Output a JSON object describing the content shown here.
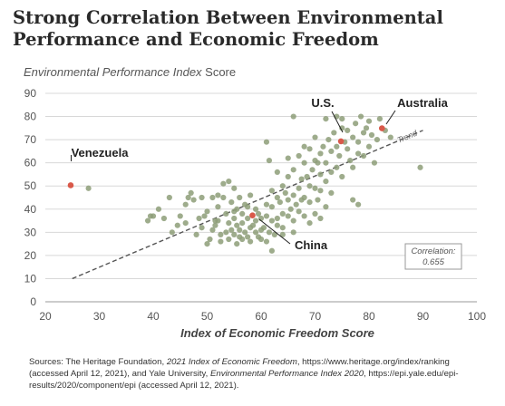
{
  "title": "Strong Correlation Between Environmental Performance and Economic Freedom",
  "y_label_italic": "Environmental Performance Index",
  "y_label_rest": " Score",
  "sources": {
    "prefix": "Sources: The Heritage Foundation, ",
    "italic1": "2021 Index of Economic Freedom",
    "mid": ", https://www.heritage.org/index/ranking (accessed April 12, 2021), and Yale University, ",
    "italic2": "Environmental Performance Index 2020",
    "suffix": ", https://epi.yale.edu/epi-results/2020/component/epi (accessed April 12, 2021)."
  },
  "colors": {
    "points": "#8d9e78",
    "highlight": "#d9594a",
    "trend": "#555555",
    "gridline": "#d8d8d8"
  },
  "chart_data": {
    "type": "scatter",
    "xlabel": "Index of Economic Freedom Score",
    "ylabel": "Environmental Performance Index Score",
    "xlim": [
      20,
      100
    ],
    "ylim": [
      0,
      90
    ],
    "x_ticks": [
      20,
      30,
      40,
      50,
      60,
      70,
      80,
      90,
      100
    ],
    "y_ticks": [
      0,
      10,
      20,
      30,
      40,
      50,
      60,
      70,
      80,
      90
    ],
    "grid": "horizontal",
    "trend": {
      "label": "Trend",
      "from": [
        25,
        10
      ],
      "to": [
        90,
        74
      ]
    },
    "correlation": {
      "label": "Correlation:",
      "value": "0.655"
    },
    "highlights": [
      {
        "label": "Venezuela",
        "x": 24.7,
        "y": 50.3
      },
      {
        "label": "U.S.",
        "x": 74.8,
        "y": 69.3
      },
      {
        "label": "Australia",
        "x": 82.4,
        "y": 74.9
      },
      {
        "label": "China",
        "x": 58.4,
        "y": 37.3
      }
    ],
    "points": [
      [
        28,
        49
      ],
      [
        39,
        35
      ],
      [
        39.5,
        37
      ],
      [
        41,
        40
      ],
      [
        42,
        36
      ],
      [
        43,
        45
      ],
      [
        43.5,
        30
      ],
      [
        44.5,
        33
      ],
      [
        45,
        37
      ],
      [
        46,
        42
      ],
      [
        46.5,
        45
      ],
      [
        47,
        47
      ],
      [
        47.5,
        44
      ],
      [
        48,
        29
      ],
      [
        48.5,
        36
      ],
      [
        49,
        32
      ],
      [
        49.5,
        37
      ],
      [
        50,
        39
      ],
      [
        50,
        25
      ],
      [
        50.5,
        27
      ],
      [
        51,
        31
      ],
      [
        51,
        45
      ],
      [
        51.5,
        33
      ],
      [
        51.5,
        35
      ],
      [
        52,
        35
      ],
      [
        52,
        41
      ],
      [
        52.5,
        26
      ],
      [
        52.5,
        29
      ],
      [
        53,
        45
      ],
      [
        53,
        51
      ],
      [
        53.5,
        30
      ],
      [
        53.5,
        38
      ],
      [
        54,
        27
      ],
      [
        54,
        34
      ],
      [
        54,
        52
      ],
      [
        54.5,
        31
      ],
      [
        54.5,
        43
      ],
      [
        55,
        29
      ],
      [
        55,
        36
      ],
      [
        55,
        49
      ],
      [
        55.5,
        25
      ],
      [
        55.5,
        33
      ],
      [
        55.5,
        40
      ],
      [
        56,
        28
      ],
      [
        56,
        31
      ],
      [
        56,
        45
      ],
      [
        56.5,
        27
      ],
      [
        56.5,
        34
      ],
      [
        56.5,
        38
      ],
      [
        57,
        30
      ],
      [
        57,
        42
      ],
      [
        57.5,
        28
      ],
      [
        57.5,
        36
      ],
      [
        57.5,
        41
      ],
      [
        58,
        32
      ],
      [
        58,
        46
      ],
      [
        58,
        26
      ],
      [
        58.5,
        33
      ],
      [
        59,
        30
      ],
      [
        59,
        35
      ],
      [
        59.5,
        28
      ],
      [
        59.5,
        38
      ],
      [
        60,
        27
      ],
      [
        60,
        31
      ],
      [
        60,
        36
      ],
      [
        60.5,
        32
      ],
      [
        61,
        37
      ],
      [
        61,
        42
      ],
      [
        61,
        26
      ],
      [
        61.5,
        30
      ],
      [
        62,
        35
      ],
      [
        62,
        41
      ],
      [
        62,
        48
      ],
      [
        62.5,
        29
      ],
      [
        63,
        45
      ],
      [
        63,
        36
      ],
      [
        63,
        33
      ],
      [
        63.5,
        43
      ],
      [
        64,
        50
      ],
      [
        64,
        38
      ],
      [
        64,
        32
      ],
      [
        64.5,
        47
      ],
      [
        65,
        44
      ],
      [
        65,
        37
      ],
      [
        65,
        54
      ],
      [
        65.5,
        40
      ],
      [
        66,
        46
      ],
      [
        66,
        35
      ],
      [
        66,
        57
      ],
      [
        66.5,
        42
      ],
      [
        67,
        49
      ],
      [
        67,
        39
      ],
      [
        67,
        63
      ],
      [
        67.5,
        44
      ],
      [
        67.5,
        53
      ],
      [
        68,
        45
      ],
      [
        68,
        37
      ],
      [
        68,
        60
      ],
      [
        68.5,
        54
      ],
      [
        69,
        50
      ],
      [
        69,
        43
      ],
      [
        69,
        66
      ],
      [
        69.5,
        57
      ],
      [
        70,
        49
      ],
      [
        70,
        38
      ],
      [
        70,
        71
      ],
      [
        70.5,
        60
      ],
      [
        70.5,
        44
      ],
      [
        71,
        55
      ],
      [
        71,
        64
      ],
      [
        71,
        48
      ],
      [
        71.5,
        67
      ],
      [
        72,
        52
      ],
      [
        72,
        60
      ],
      [
        72,
        41
      ],
      [
        72.5,
        70
      ],
      [
        73,
        65
      ],
      [
        73,
        56
      ],
      [
        73,
        47
      ],
      [
        73.5,
        73
      ],
      [
        74,
        67
      ],
      [
        74,
        58
      ],
      [
        74.5,
        63
      ],
      [
        75,
        75
      ],
      [
        75,
        54
      ],
      [
        75,
        79
      ],
      [
        75.5,
        69
      ],
      [
        76,
        66
      ],
      [
        76,
        74
      ],
      [
        76.5,
        61
      ],
      [
        77,
        71
      ],
      [
        77,
        58
      ],
      [
        77.5,
        77
      ],
      [
        78,
        69
      ],
      [
        78,
        64
      ],
      [
        78.5,
        80
      ],
      [
        79,
        73
      ],
      [
        79,
        63
      ],
      [
        79.5,
        75
      ],
      [
        80,
        78
      ],
      [
        80,
        67
      ],
      [
        80.5,
        72
      ],
      [
        81,
        60
      ],
      [
        81.5,
        70
      ],
      [
        82,
        79
      ],
      [
        83,
        74
      ],
      [
        84,
        71
      ],
      [
        89.5,
        58
      ],
      [
        61,
        69
      ],
      [
        61.5,
        61
      ],
      [
        66,
        80
      ],
      [
        68,
        67
      ],
      [
        63,
        56
      ],
      [
        65,
        62
      ],
      [
        70,
        61
      ],
      [
        72,
        79
      ],
      [
        74,
        80
      ],
      [
        77,
        44
      ],
      [
        78,
        42
      ],
      [
        46,
        34
      ],
      [
        40,
        37
      ],
      [
        49,
        45
      ],
      [
        52,
        46
      ],
      [
        55,
        39
      ],
      [
        59,
        40
      ],
      [
        62,
        22
      ],
      [
        64,
        29
      ],
      [
        66,
        30
      ],
      [
        69,
        34
      ],
      [
        71,
        36
      ]
    ]
  }
}
